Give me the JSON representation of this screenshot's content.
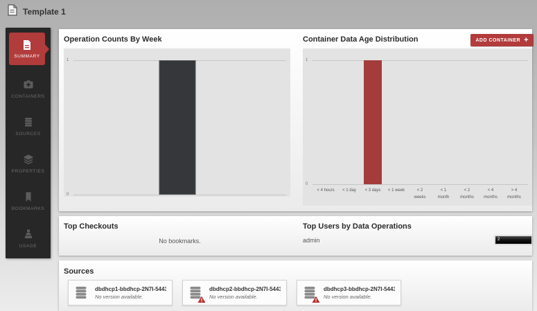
{
  "header": {
    "title": "Template 1"
  },
  "sidebar": {
    "items": [
      {
        "label": "SUMMARY",
        "icon": "document-icon",
        "active": true
      },
      {
        "label": "CONTAINERS",
        "icon": "container-icon",
        "active": false
      },
      {
        "label": "SOURCES",
        "icon": "database-icon",
        "active": false
      },
      {
        "label": "PROPERTIES",
        "icon": "layers-icon",
        "active": false
      },
      {
        "label": "BOOKMARKS",
        "icon": "bookmark-icon",
        "active": false
      },
      {
        "label": "USAGE",
        "icon": "usage-icon",
        "active": false
      }
    ]
  },
  "colors": {
    "accent_red": "#b23b3b",
    "bar_dark": "#35373a",
    "bar_red": "#a53c3c",
    "sidebar_bg": "#272727"
  },
  "chart_data": [
    {
      "type": "bar",
      "title": "Operation Counts By Week",
      "categories": [
        ""
      ],
      "values": [
        1
      ],
      "ylim": [
        0,
        1
      ],
      "yticks": [
        "0",
        "1"
      ],
      "bar_color": "#35373a",
      "grid": true,
      "legend": false
    },
    {
      "type": "bar",
      "title": "Container Data Age Distribution",
      "categories": [
        "< 4 hours",
        "< 1 day",
        "< 3 days",
        "< 1 week",
        "< 2 weeks",
        "< 1 month",
        "< 2 months",
        "< 4 months",
        "> 4 months"
      ],
      "tick_lines": [
        [
          "< 4 hours"
        ],
        [
          "< 1 day"
        ],
        [
          "< 3 days"
        ],
        [
          "< 1 week"
        ],
        [
          "< 2",
          "weeks"
        ],
        [
          "< 1",
          "month"
        ],
        [
          "< 2",
          "months"
        ],
        [
          "< 4",
          "months"
        ],
        [
          "> 4",
          "months"
        ]
      ],
      "values": [
        0,
        0,
        1,
        0,
        0,
        0,
        0,
        0,
        0
      ],
      "ylim": [
        0,
        1
      ],
      "yticks": [
        "0",
        "1"
      ],
      "bar_color": "#a53c3c",
      "grid": true,
      "legend": false
    },
    {
      "type": "bar",
      "title": "Top Users by Data Operations",
      "categories": [
        "admin"
      ],
      "values": [
        2
      ],
      "bar_color": "#161616"
    }
  ],
  "panels": {
    "age_distribution": {
      "add_button_label": "ADD CONTAINER",
      "add_button_plus": "+"
    },
    "top_checkouts": {
      "title": "Top Checkouts",
      "empty_message": "No bookmarks."
    },
    "top_users": {
      "title": "Top Users by Data Operations",
      "rows": [
        {
          "user": "admin",
          "value": "2"
        }
      ]
    },
    "sources": {
      "title": "Sources",
      "cards": [
        {
          "name": "dbdhcp1-bbdhcp-2N7I-5443…",
          "status": "No version available.",
          "warning": false
        },
        {
          "name": "dbdhcp2-bbdhcp-2N7I-5443…",
          "status": "No version available.",
          "warning": true
        },
        {
          "name": "dbdhcp3-bbdhcp-2N7I-5443…",
          "status": "No version available.",
          "warning": true
        }
      ]
    }
  }
}
